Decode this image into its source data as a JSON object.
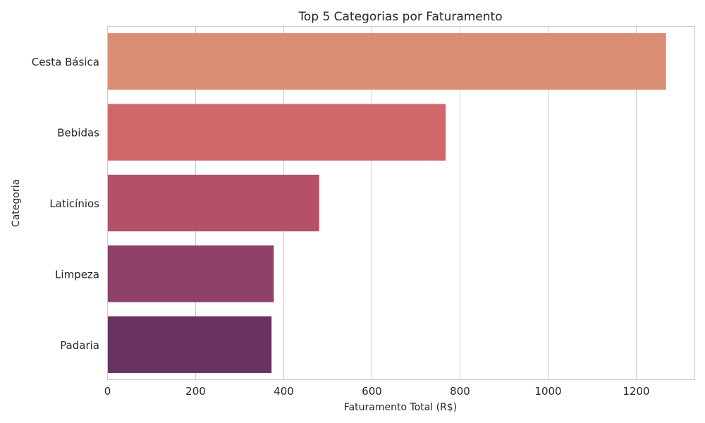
{
  "chart_data": {
    "type": "bar",
    "orientation": "horizontal",
    "title": "Top 5 Categorias por Faturamento",
    "xlabel": "Faturamento Total (R$)",
    "ylabel": "Categoria",
    "categories": [
      "Cesta Básica",
      "Bebidas",
      "Laticínios",
      "Limpeza",
      "Padaria"
    ],
    "values": [
      1268,
      768,
      481,
      378,
      373
    ],
    "colors": [
      "#d98e74",
      "#d0676a",
      "#b4506a",
      "#8f4269",
      "#693361"
    ],
    "xlim": [
      0,
      1334
    ],
    "xticks": [
      0,
      200,
      400,
      600,
      800,
      1000,
      1200
    ],
    "grid": true,
    "legend": "none"
  }
}
